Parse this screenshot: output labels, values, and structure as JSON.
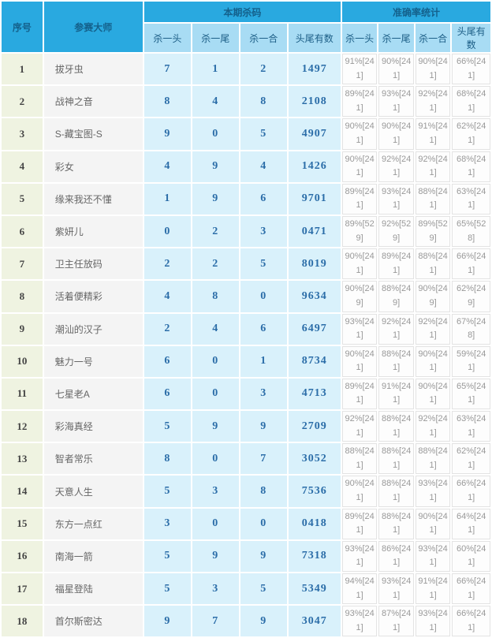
{
  "table": {
    "header": {
      "seq": "序号",
      "master": "参赛大师",
      "kill_group": "本期杀码",
      "stats_group": "准确率统计",
      "kill_sub": [
        "杀一头",
        "杀一尾",
        "杀一合",
        "头尾有数"
      ],
      "stats_sub": [
        "杀一头",
        "杀一尾",
        "杀一合",
        "头尾有数"
      ]
    },
    "rows": [
      {
        "seq": "1",
        "master": "拔牙虫",
        "kills": [
          "7",
          "1",
          "2",
          "1497"
        ],
        "stats": [
          "91%[241]",
          "90%[241]",
          "90%[241]",
          "66%[241]"
        ]
      },
      {
        "seq": "2",
        "master": "战神之音",
        "kills": [
          "8",
          "4",
          "8",
          "2108"
        ],
        "stats": [
          "89%[241]",
          "93%[241]",
          "92%[241]",
          "68%[241]"
        ]
      },
      {
        "seq": "3",
        "master": "S-藏宝图-S",
        "kills": [
          "9",
          "0",
          "5",
          "4907"
        ],
        "stats": [
          "90%[241]",
          "90%[241]",
          "91%[241]",
          "62%[241]"
        ]
      },
      {
        "seq": "4",
        "master": "彩女",
        "kills": [
          "4",
          "9",
          "4",
          "1426"
        ],
        "stats": [
          "90%[241]",
          "92%[241]",
          "92%[241]",
          "68%[241]"
        ]
      },
      {
        "seq": "5",
        "master": "缘来我还不懂",
        "kills": [
          "1",
          "9",
          "6",
          "9701"
        ],
        "stats": [
          "89%[241]",
          "93%[241]",
          "88%[241]",
          "63%[241]"
        ]
      },
      {
        "seq": "6",
        "master": "紫妍儿",
        "kills": [
          "0",
          "2",
          "3",
          "0471"
        ],
        "stats": [
          "89%[529]",
          "92%[529]",
          "89%[529]",
          "65%[528]"
        ]
      },
      {
        "seq": "7",
        "master": "卫主任放码",
        "kills": [
          "2",
          "2",
          "5",
          "8019"
        ],
        "stats": [
          "90%[241]",
          "89%[241]",
          "88%[241]",
          "66%[241]"
        ]
      },
      {
        "seq": "8",
        "master": "活着便精彩",
        "kills": [
          "4",
          "8",
          "0",
          "9634"
        ],
        "stats": [
          "90%[249]",
          "88%[249]",
          "90%[249]",
          "62%[249]"
        ]
      },
      {
        "seq": "9",
        "master": "潮汕的汉子",
        "kills": [
          "2",
          "4",
          "6",
          "6497"
        ],
        "stats": [
          "93%[241]",
          "92%[241]",
          "92%[241]",
          "67%[248]"
        ]
      },
      {
        "seq": "10",
        "master": "魅力一号",
        "kills": [
          "6",
          "0",
          "1",
          "8734"
        ],
        "stats": [
          "90%[241]",
          "88%[241]",
          "90%[241]",
          "59%[241]"
        ]
      },
      {
        "seq": "11",
        "master": "七星老A",
        "kills": [
          "6",
          "0",
          "3",
          "4713"
        ],
        "stats": [
          "89%[241]",
          "91%[241]",
          "90%[241]",
          "65%[241]"
        ]
      },
      {
        "seq": "12",
        "master": "彩海真经",
        "kills": [
          "5",
          "9",
          "9",
          "2709"
        ],
        "stats": [
          "92%[241]",
          "88%[241]",
          "92%[241]",
          "63%[241]"
        ]
      },
      {
        "seq": "13",
        "master": "智者常乐",
        "kills": [
          "8",
          "0",
          "7",
          "3052"
        ],
        "stats": [
          "88%[241]",
          "88%[241]",
          "88%[241]",
          "62%[241]"
        ]
      },
      {
        "seq": "14",
        "master": "天意人生",
        "kills": [
          "5",
          "3",
          "8",
          "7536"
        ],
        "stats": [
          "90%[241]",
          "88%[241]",
          "93%[241]",
          "66%[241]"
        ]
      },
      {
        "seq": "15",
        "master": "东方一点红",
        "kills": [
          "3",
          "0",
          "0",
          "0418"
        ],
        "stats": [
          "89%[241]",
          "88%[241]",
          "90%[241]",
          "64%[241]"
        ]
      },
      {
        "seq": "16",
        "master": "南海一箭",
        "kills": [
          "5",
          "9",
          "9",
          "7318"
        ],
        "stats": [
          "93%[241]",
          "86%[241]",
          "93%[241]",
          "60%[241]"
        ]
      },
      {
        "seq": "17",
        "master": "福星登陆",
        "kills": [
          "5",
          "3",
          "5",
          "5349"
        ],
        "stats": [
          "94%[241]",
          "93%[241]",
          "91%[241]",
          "66%[241]"
        ]
      },
      {
        "seq": "18",
        "master": "首尔斯密达",
        "kills": [
          "9",
          "7",
          "9",
          "3047"
        ],
        "stats": [
          "93%[241]",
          "87%[241]",
          "93%[241]",
          "66%[241]"
        ]
      }
    ]
  },
  "colors": {
    "header_bg": "#29A9E0",
    "subheader_bg": "#A8DCF4",
    "seq_bg": "#EFF3E1",
    "name_bg": "#F4F4F4",
    "kill_bg": "#D9F1FB",
    "kill_text": "#2B6DA8",
    "stat_text": "#999999"
  }
}
